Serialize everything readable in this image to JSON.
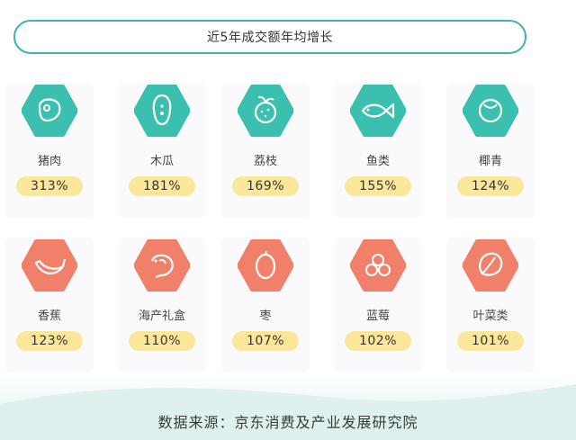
{
  "title": "近5年成交额年均增长",
  "colors": {
    "teal": "#3bbfae",
    "coral": "#f0806a",
    "pill": "#fbe79a"
  },
  "items": [
    {
      "name": "猪肉",
      "growth": "313%",
      "icon": "meat-icon"
    },
    {
      "name": "木瓜",
      "growth": "181%",
      "icon": "papaya-icon"
    },
    {
      "name": "荔枝",
      "growth": "169%",
      "icon": "lychee-icon"
    },
    {
      "name": "鱼类",
      "growth": "155%",
      "icon": "fish-icon"
    },
    {
      "name": "椰青",
      "growth": "124%",
      "icon": "coconut-icon"
    },
    {
      "name": "香蕉",
      "growth": "123%",
      "icon": "banana-icon"
    },
    {
      "name": "海产礼盒",
      "growth": "110%",
      "icon": "shrimp-icon"
    },
    {
      "name": "枣",
      "growth": "107%",
      "icon": "jujube-icon"
    },
    {
      "name": "蓝莓",
      "growth": "102%",
      "icon": "blueberry-icon"
    },
    {
      "name": "叶菜类",
      "growth": "101%",
      "icon": "leafy-vegetable-icon"
    }
  ],
  "source": "数据来源：京东消费及产业发展研究院"
}
